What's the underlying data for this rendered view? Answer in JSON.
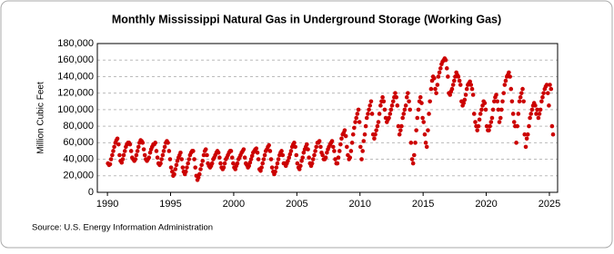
{
  "chart_data": {
    "type": "scatter",
    "title": "Monthly Mississippi Natural Gas in Underground Storage (Working Gas)",
    "y_label": "Million Cubic Feet",
    "source": "Source: U.S. Energy Information Administration",
    "color": "#cc0000",
    "grid": true,
    "xlim": [
      1989.2,
      2025.65
    ],
    "xticks": [
      1990,
      1995,
      2000,
      2005,
      2010,
      2015,
      2020,
      2025
    ],
    "ylim": [
      0,
      180000
    ],
    "yticks": [
      0,
      {
        "value": 20000,
        "label": "20,000"
      },
      {
        "value": 40000,
        "label": "40,000"
      },
      {
        "value": 60000,
        "label": "60,000"
      },
      {
        "value": 80000,
        "label": "80,000"
      },
      {
        "value": 100000,
        "label": "100,000"
      },
      {
        "value": 120000,
        "label": "120,000"
      },
      {
        "value": 140000,
        "label": "140,000"
      },
      {
        "value": 160000,
        "label": "160,000"
      },
      {
        "value": 180000,
        "label": "180,000"
      }
    ],
    "x": [
      1990.04,
      1990.13,
      1990.21,
      1990.29,
      1990.38,
      1990.46,
      1990.54,
      1990.63,
      1990.71,
      1990.79,
      1990.88,
      1990.96,
      1991.04,
      1991.13,
      1991.21,
      1991.29,
      1991.38,
      1991.46,
      1991.54,
      1991.63,
      1991.71,
      1991.79,
      1991.88,
      1991.96,
      1992.04,
      1992.13,
      1992.21,
      1992.29,
      1992.38,
      1992.46,
      1992.54,
      1992.63,
      1992.71,
      1992.79,
      1992.88,
      1992.96,
      1993.04,
      1993.13,
      1993.21,
      1993.29,
      1993.38,
      1993.46,
      1993.54,
      1993.63,
      1993.71,
      1993.79,
      1993.88,
      1993.96,
      1994.04,
      1994.13,
      1994.21,
      1994.29,
      1994.38,
      1994.46,
      1994.54,
      1994.63,
      1994.71,
      1994.79,
      1994.88,
      1994.96,
      1995.04,
      1995.13,
      1995.21,
      1995.29,
      1995.38,
      1995.46,
      1995.54,
      1995.63,
      1995.71,
      1995.79,
      1995.88,
      1995.96,
      1996.04,
      1996.13,
      1996.21,
      1996.29,
      1996.38,
      1996.46,
      1996.54,
      1996.63,
      1996.71,
      1996.79,
      1996.88,
      1996.96,
      1997.04,
      1997.13,
      1997.21,
      1997.29,
      1997.38,
      1997.46,
      1997.54,
      1997.63,
      1997.71,
      1997.79,
      1997.88,
      1997.96,
      1998.04,
      1998.13,
      1998.21,
      1998.29,
      1998.38,
      1998.46,
      1998.54,
      1998.63,
      1998.71,
      1998.79,
      1998.88,
      1998.96,
      1999.04,
      1999.13,
      1999.21,
      1999.29,
      1999.38,
      1999.46,
      1999.54,
      1999.63,
      1999.71,
      1999.79,
      1999.88,
      1999.96,
      2000.04,
      2000.13,
      2000.21,
      2000.29,
      2000.38,
      2000.46,
      2000.54,
      2000.63,
      2000.71,
      2000.79,
      2000.88,
      2000.96,
      2001.04,
      2001.13,
      2001.21,
      2001.29,
      2001.38,
      2001.46,
      2001.54,
      2001.63,
      2001.71,
      2001.79,
      2001.88,
      2001.96,
      2002.04,
      2002.13,
      2002.21,
      2002.29,
      2002.38,
      2002.46,
      2002.54,
      2002.63,
      2002.71,
      2002.79,
      2002.88,
      2002.96,
      2003.04,
      2003.13,
      2003.21,
      2003.29,
      2003.38,
      2003.46,
      2003.54,
      2003.63,
      2003.71,
      2003.79,
      2003.88,
      2003.96,
      2004.04,
      2004.13,
      2004.21,
      2004.29,
      2004.38,
      2004.46,
      2004.54,
      2004.63,
      2004.71,
      2004.79,
      2004.88,
      2004.96,
      2005.04,
      2005.13,
      2005.21,
      2005.29,
      2005.38,
      2005.46,
      2005.54,
      2005.63,
      2005.71,
      2005.79,
      2005.88,
      2005.96,
      2006.04,
      2006.13,
      2006.21,
      2006.29,
      2006.38,
      2006.46,
      2006.54,
      2006.63,
      2006.71,
      2006.79,
      2006.88,
      2006.96,
      2007.04,
      2007.13,
      2007.21,
      2007.29,
      2007.38,
      2007.46,
      2007.54,
      2007.63,
      2007.71,
      2007.79,
      2007.88,
      2007.96,
      2008.04,
      2008.13,
      2008.21,
      2008.29,
      2008.38,
      2008.46,
      2008.54,
      2008.63,
      2008.71,
      2008.79,
      2008.88,
      2008.96,
      2009.04,
      2009.13,
      2009.21,
      2009.29,
      2009.38,
      2009.46,
      2009.54,
      2009.63,
      2009.71,
      2009.79,
      2009.88,
      2009.96,
      2010.04,
      2010.13,
      2010.21,
      2010.29,
      2010.38,
      2010.46,
      2010.54,
      2010.63,
      2010.71,
      2010.79,
      2010.88,
      2010.96,
      2011.04,
      2011.13,
      2011.21,
      2011.29,
      2011.38,
      2011.46,
      2011.54,
      2011.63,
      2011.71,
      2011.79,
      2011.88,
      2011.96,
      2012.04,
      2012.13,
      2012.21,
      2012.29,
      2012.38,
      2012.46,
      2012.54,
      2012.63,
      2012.71,
      2012.79,
      2012.88,
      2012.96,
      2013.04,
      2013.13,
      2013.21,
      2013.29,
      2013.38,
      2013.46,
      2013.54,
      2013.63,
      2013.71,
      2013.79,
      2013.88,
      2013.96,
      2014.04,
      2014.13,
      2014.21,
      2014.29,
      2014.38,
      2014.46,
      2014.54,
      2014.63,
      2014.71,
      2014.79,
      2014.88,
      2014.96,
      2015.04,
      2015.13,
      2015.21,
      2015.29,
      2015.38,
      2015.46,
      2015.54,
      2015.63,
      2015.71,
      2015.79,
      2015.88,
      2015.96,
      2016.04,
      2016.13,
      2016.21,
      2016.29,
      2016.38,
      2016.46,
      2016.54,
      2016.63,
      2016.71,
      2016.79,
      2016.88,
      2016.96,
      2017.04,
      2017.13,
      2017.21,
      2017.29,
      2017.38,
      2017.46,
      2017.54,
      2017.63,
      2017.71,
      2017.79,
      2017.88,
      2017.96,
      2018.04,
      2018.13,
      2018.21,
      2018.29,
      2018.38,
      2018.46,
      2018.54,
      2018.63,
      2018.71,
      2018.79,
      2018.88,
      2018.96,
      2019.04,
      2019.13,
      2019.21,
      2019.29,
      2019.38,
      2019.46,
      2019.54,
      2019.63,
      2019.71,
      2019.79,
      2019.88,
      2019.96,
      2020.04,
      2020.13,
      2020.21,
      2020.29,
      2020.38,
      2020.46,
      2020.54,
      2020.63,
      2020.71,
      2020.79,
      2020.88,
      2020.96,
      2021.04,
      2021.13,
      2021.21,
      2021.29,
      2021.38,
      2021.46,
      2021.54,
      2021.63,
      2021.71,
      2021.79,
      2021.88,
      2021.96,
      2022.04,
      2022.13,
      2022.21,
      2022.29,
      2022.38,
      2022.46,
      2022.54,
      2022.63,
      2022.71,
      2022.79,
      2022.88,
      2022.96,
      2023.04,
      2023.13,
      2023.21,
      2023.29,
      2023.38,
      2023.46,
      2023.54,
      2023.63,
      2023.71,
      2023.79,
      2023.88,
      2023.96,
      2024.04,
      2024.13,
      2024.21,
      2024.29,
      2024.38,
      2024.46,
      2024.54,
      2024.63,
      2024.71,
      2024.79,
      2024.88,
      2024.96,
      2025.04,
      2025.13,
      2025.21,
      2025.29
    ],
    "values": [
      35000,
      33000,
      34000,
      40000,
      45000,
      50000,
      55000,
      60000,
      63000,
      65000,
      58000,
      45000,
      38000,
      36000,
      40000,
      45000,
      50000,
      55000,
      58000,
      60000,
      60000,
      58000,
      50000,
      42000,
      40000,
      38000,
      40000,
      45000,
      50000,
      55000,
      60000,
      63000,
      62000,
      60000,
      52000,
      45000,
      40000,
      38000,
      40000,
      42000,
      48000,
      52000,
      55000,
      58000,
      58000,
      60000,
      50000,
      42000,
      35000,
      33000,
      35000,
      40000,
      45000,
      50000,
      55000,
      60000,
      62000,
      60000,
      50000,
      40000,
      30000,
      25000,
      20000,
      22000,
      28000,
      33000,
      38000,
      42000,
      45000,
      48000,
      40000,
      30000,
      25000,
      22000,
      25000,
      30000,
      35000,
      40000,
      45000,
      48000,
      50000,
      50000,
      40000,
      30000,
      20000,
      15000,
      18000,
      22000,
      28000,
      33000,
      38000,
      45000,
      50000,
      52000,
      45000,
      35000,
      32000,
      30000,
      32000,
      35000,
      40000,
      42000,
      45000,
      48000,
      50000,
      48000,
      42000,
      35000,
      30000,
      28000,
      30000,
      35000,
      40000,
      42000,
      45000,
      48000,
      50000,
      50000,
      42000,
      35000,
      30000,
      28000,
      32000,
      35000,
      40000,
      42000,
      45000,
      48000,
      50000,
      52000,
      42000,
      35000,
      33000,
      30000,
      32000,
      36000,
      40000,
      44000,
      48000,
      50000,
      52000,
      53000,
      48000,
      40000,
      28000,
      26000,
      30000,
      35000,
      40000,
      45000,
      50000,
      52000,
      55000,
      57000,
      50000,
      40000,
      30000,
      25000,
      22000,
      25000,
      30000,
      35000,
      40000,
      45000,
      48000,
      50000,
      45000,
      35000,
      35000,
      32000,
      35000,
      38000,
      42000,
      46000,
      50000,
      55000,
      58000,
      60000,
      55000,
      45000,
      35000,
      30000,
      28000,
      32000,
      38000,
      42000,
      48000,
      52000,
      55000,
      58000,
      52000,
      42000,
      35000,
      32000,
      35000,
      40000,
      45000,
      50000,
      55000,
      60000,
      60000,
      62000,
      55000,
      48000,
      45000,
      40000,
      40000,
      42000,
      48000,
      52000,
      55000,
      58000,
      60000,
      62000,
      55000,
      50000,
      40000,
      35000,
      35000,
      42000,
      50000,
      58000,
      65000,
      70000,
      72000,
      75000,
      68000,
      55000,
      45000,
      40000,
      42000,
      50000,
      60000,
      70000,
      78000,
      85000,
      90000,
      95000,
      100000,
      85000,
      55000,
      40000,
      50000,
      62000,
      70000,
      80000,
      90000,
      95000,
      100000,
      105000,
      110000,
      95000,
      70000,
      65000,
      70000,
      75000,
      80000,
      85000,
      95000,
      105000,
      110000,
      115000,
      110000,
      100000,
      90000,
      85000,
      88000,
      90000,
      95000,
      100000,
      105000,
      110000,
      115000,
      120000,
      115000,
      105000,
      80000,
      70000,
      75000,
      80000,
      90000,
      95000,
      100000,
      105000,
      115000,
      120000,
      110000,
      100000,
      60000,
      40000,
      35000,
      45000,
      60000,
      75000,
      90000,
      100000,
      110000,
      115000,
      108000,
      90000,
      85000,
      70000,
      60000,
      55000,
      75000,
      95000,
      110000,
      125000,
      135000,
      140000,
      138000,
      125000,
      120000,
      130000,
      140000,
      145000,
      150000,
      155000,
      158000,
      160000,
      162000,
      160000,
      150000,
      140000,
      120000,
      118000,
      122000,
      125000,
      130000,
      135000,
      140000,
      145000,
      142000,
      140000,
      135000,
      130000,
      110000,
      105000,
      108000,
      112000,
      118000,
      125000,
      130000,
      132000,
      134000,
      130000,
      125000,
      118000,
      95000,
      85000,
      80000,
      75000,
      80000,
      88000,
      95000,
      100000,
      105000,
      110000,
      108000,
      100000,
      80000,
      75000,
      75000,
      80000,
      85000,
      90000,
      100000,
      110000,
      115000,
      118000,
      110000,
      100000,
      85000,
      90000,
      100000,
      110000,
      120000,
      130000,
      135000,
      140000,
      142000,
      145000,
      140000,
      125000,
      110000,
      95000,
      85000,
      80000,
      60000,
      80000,
      95000,
      110000,
      115000,
      120000,
      125000,
      110000,
      70000,
      55000,
      65000,
      70000,
      80000,
      90000,
      95000,
      100000,
      105000,
      108000,
      105000,
      95000,
      100000,
      90000,
      95000,
      100000,
      110000,
      115000,
      120000,
      125000,
      128000,
      130000,
      120000,
      105000,
      130000,
      125000,
      80000,
      70000
    ]
  }
}
